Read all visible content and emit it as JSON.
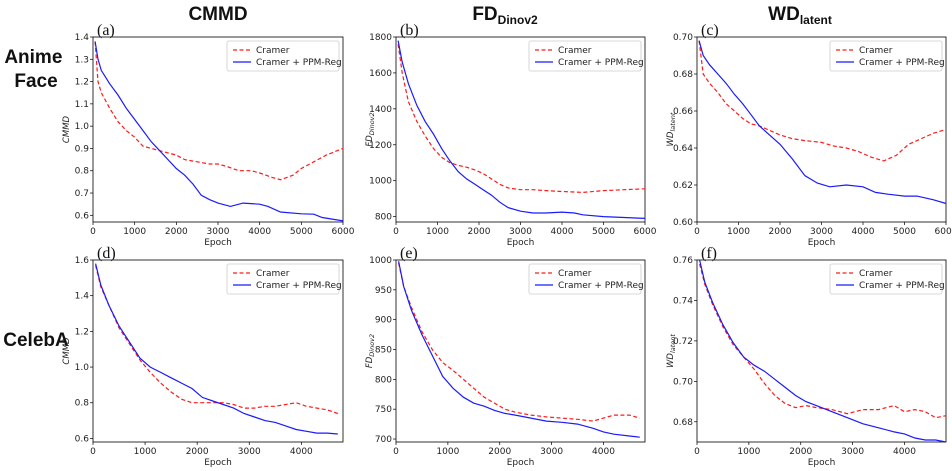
{
  "columns": [
    {
      "title": "CMMD",
      "title_sub": ""
    },
    {
      "title": "FD",
      "title_sub": "Dinov2"
    },
    {
      "title": "WD",
      "title_sub": "latent"
    }
  ],
  "rows": [
    {
      "label_lines": [
        "Anime",
        "Face"
      ]
    },
    {
      "label_lines": [
        "CelebA"
      ]
    }
  ],
  "colors": {
    "cramer": "#ff1a1a",
    "ppm": "#1a1aff"
  },
  "legend": [
    "Cramer",
    "Cramer + PPM-Reg"
  ],
  "chart_data": [
    {
      "type": "line",
      "panel": "(a)",
      "xlabel": "Epoch",
      "ylabel": "CMMD",
      "ylabel_sub": "",
      "xlim": [
        0,
        6000
      ],
      "ylim": [
        0.57,
        1.4
      ],
      "xticks": [
        0,
        1000,
        2000,
        3000,
        4000,
        5000,
        6000
      ],
      "xtick_labels": [
        "0",
        "1000",
        "2000",
        "3000",
        "4000",
        "5000",
        "6000"
      ],
      "yticks": [
        0.6,
        0.7,
        0.8,
        0.9,
        1.0,
        1.1,
        1.2,
        1.3,
        1.4
      ],
      "ytick_labels": [
        "0.6",
        "0.7",
        "0.8",
        "0.9",
        "1.0",
        "1.1",
        "1.2",
        "1.3",
        "1.4"
      ],
      "legend_position": "top-right",
      "series": [
        {
          "name": "Cramer",
          "style": "dashed",
          "x": [
            50,
            120,
            200,
            400,
            600,
            800,
            1000,
            1200,
            1400,
            1600,
            1800,
            2000,
            2200,
            2500,
            2800,
            3000,
            3200,
            3500,
            3800,
            4000,
            4300,
            4500,
            4800,
            5000,
            5300,
            5600,
            6000
          ],
          "y": [
            1.38,
            1.2,
            1.15,
            1.08,
            1.02,
            0.98,
            0.95,
            0.91,
            0.9,
            0.89,
            0.88,
            0.87,
            0.85,
            0.84,
            0.83,
            0.83,
            0.82,
            0.8,
            0.8,
            0.79,
            0.77,
            0.76,
            0.78,
            0.81,
            0.84,
            0.87,
            0.9
          ]
        },
        {
          "name": "Cramer + PPM-Reg",
          "style": "solid",
          "x": [
            50,
            120,
            200,
            300,
            400,
            600,
            800,
            1000,
            1200,
            1400,
            1600,
            1800,
            2000,
            2200,
            2400,
            2600,
            2800,
            3000,
            3300,
            3600,
            4000,
            4200,
            4500,
            5000,
            5300,
            5500,
            6000
          ],
          "y": [
            1.38,
            1.3,
            1.25,
            1.22,
            1.19,
            1.14,
            1.08,
            1.03,
            0.98,
            0.93,
            0.89,
            0.85,
            0.81,
            0.78,
            0.74,
            0.69,
            0.67,
            0.655,
            0.64,
            0.655,
            0.65,
            0.64,
            0.615,
            0.607,
            0.605,
            0.59,
            0.575
          ]
        }
      ]
    },
    {
      "type": "line",
      "panel": "(b)",
      "xlabel": "Epoch",
      "ylabel": "FD",
      "ylabel_sub": "Dinov2",
      "xlim": [
        0,
        6000
      ],
      "ylim": [
        770,
        1800
      ],
      "xticks": [
        0,
        1000,
        2000,
        3000,
        4000,
        5000,
        6000
      ],
      "xtick_labels": [
        "0",
        "1000",
        "2000",
        "3000",
        "4000",
        "5000",
        "6000"
      ],
      "yticks": [
        800,
        1000,
        1200,
        1400,
        1600,
        1800
      ],
      "ytick_labels": [
        "800",
        "1000",
        "1200",
        "1400",
        "1600",
        "1800"
      ],
      "legend_position": "top-right",
      "series": [
        {
          "name": "Cramer",
          "style": "dashed",
          "x": [
            50,
            150,
            300,
            500,
            700,
            900,
            1100,
            1300,
            1500,
            1700,
            1900,
            2100,
            2300,
            2500,
            2700,
            3000,
            3300,
            3600,
            4000,
            4500,
            5000,
            5500,
            6000
          ],
          "y": [
            1760,
            1600,
            1440,
            1330,
            1250,
            1180,
            1130,
            1100,
            1085,
            1075,
            1060,
            1040,
            1010,
            980,
            960,
            950,
            950,
            945,
            940,
            935,
            945,
            950,
            955
          ]
        },
        {
          "name": "Cramer + PPM-Reg",
          "style": "solid",
          "x": [
            50,
            150,
            300,
            500,
            700,
            900,
            1100,
            1300,
            1500,
            1700,
            1900,
            2100,
            2300,
            2500,
            2700,
            3000,
            3300,
            3600,
            4000,
            4300,
            4500,
            5000,
            5500,
            6000
          ],
          "y": [
            1780,
            1660,
            1540,
            1420,
            1330,
            1260,
            1180,
            1110,
            1050,
            1010,
            980,
            950,
            920,
            880,
            850,
            830,
            820,
            820,
            825,
            820,
            810,
            800,
            795,
            790
          ]
        }
      ]
    },
    {
      "type": "line",
      "panel": "(c)",
      "xlabel": "Epoch",
      "ylabel": "WD",
      "ylabel_sub": "latent",
      "xlim": [
        0,
        6000
      ],
      "ylim": [
        0.6,
        0.7
      ],
      "xticks": [
        0,
        1000,
        2000,
        3000,
        4000,
        5000,
        6000
      ],
      "xtick_labels": [
        "0",
        "1000",
        "2000",
        "3000",
        "4000",
        "5000",
        "6000"
      ],
      "yticks": [
        0.6,
        0.62,
        0.64,
        0.66,
        0.68,
        0.7
      ],
      "ytick_labels": [
        "0.60",
        "0.62",
        "0.64",
        "0.66",
        "0.68",
        "0.70"
      ],
      "legend_position": "top-right",
      "series": [
        {
          "name": "Cramer",
          "style": "dashed",
          "x": [
            50,
            150,
            300,
            500,
            700,
            900,
            1100,
            1300,
            1500,
            1700,
            2000,
            2300,
            2600,
            3000,
            3300,
            3600,
            3900,
            4200,
            4500,
            4800,
            5100,
            5400,
            5700,
            6000
          ],
          "y": [
            0.698,
            0.68,
            0.675,
            0.67,
            0.664,
            0.66,
            0.656,
            0.653,
            0.652,
            0.65,
            0.647,
            0.645,
            0.644,
            0.643,
            0.641,
            0.64,
            0.638,
            0.635,
            0.633,
            0.636,
            0.642,
            0.645,
            0.648,
            0.65
          ]
        },
        {
          "name": "Cramer + PPM-Reg",
          "style": "solid",
          "x": [
            50,
            150,
            300,
            500,
            700,
            900,
            1100,
            1300,
            1500,
            1700,
            2000,
            2300,
            2600,
            2900,
            3200,
            3600,
            4000,
            4300,
            4600,
            5000,
            5300,
            5700,
            6000
          ],
          "y": [
            0.698,
            0.69,
            0.685,
            0.68,
            0.675,
            0.669,
            0.664,
            0.658,
            0.652,
            0.648,
            0.642,
            0.634,
            0.625,
            0.621,
            0.619,
            0.62,
            0.619,
            0.616,
            0.615,
            0.614,
            0.614,
            0.612,
            0.61
          ]
        }
      ]
    },
    {
      "type": "line",
      "panel": "(d)",
      "xlabel": "Epoch",
      "ylabel": "CMMD",
      "ylabel_sub": "",
      "xlim": [
        0,
        4800
      ],
      "ylim": [
        0.58,
        1.6
      ],
      "xticks": [
        0,
        1000,
        2000,
        3000,
        4000
      ],
      "xtick_labels": [
        "0",
        "1000",
        "2000",
        "3000",
        "4000"
      ],
      "yticks": [
        0.6,
        0.8,
        1.0,
        1.2,
        1.4,
        1.6
      ],
      "ytick_labels": [
        "0.6",
        "0.8",
        "1.0",
        "1.2",
        "1.4",
        "1.6"
      ],
      "legend_position": "top-right",
      "series": [
        {
          "name": "Cramer",
          "style": "dashed",
          "x": [
            50,
            150,
            300,
            500,
            700,
            900,
            1100,
            1300,
            1500,
            1700,
            1900,
            2100,
            2300,
            2500,
            2700,
            2900,
            3100,
            3300,
            3500,
            3700,
            3900,
            4100,
            4300,
            4500,
            4700
          ],
          "y": [
            1.57,
            1.45,
            1.35,
            1.22,
            1.13,
            1.04,
            0.97,
            0.91,
            0.86,
            0.82,
            0.8,
            0.8,
            0.8,
            0.8,
            0.79,
            0.77,
            0.77,
            0.78,
            0.78,
            0.79,
            0.8,
            0.78,
            0.77,
            0.76,
            0.74
          ]
        },
        {
          "name": "Cramer + PPM-Reg",
          "style": "solid",
          "x": [
            50,
            150,
            300,
            500,
            700,
            900,
            1100,
            1300,
            1500,
            1700,
            1900,
            2100,
            2300,
            2500,
            2700,
            2900,
            3100,
            3300,
            3500,
            3700,
            3900,
            4100,
            4300,
            4500,
            4700
          ],
          "y": [
            1.58,
            1.46,
            1.35,
            1.23,
            1.14,
            1.05,
            1.0,
            0.97,
            0.94,
            0.91,
            0.88,
            0.83,
            0.81,
            0.79,
            0.77,
            0.74,
            0.72,
            0.7,
            0.69,
            0.67,
            0.65,
            0.64,
            0.63,
            0.63,
            0.625
          ]
        }
      ]
    },
    {
      "type": "line",
      "panel": "(e)",
      "xlabel": "Epoch",
      "ylabel": "FD",
      "ylabel_sub": "Dinov2",
      "xlim": [
        0,
        4800
      ],
      "ylim": [
        695,
        1000
      ],
      "xticks": [
        0,
        1000,
        2000,
        3000,
        4000
      ],
      "xtick_labels": [
        "0",
        "1000",
        "2000",
        "3000",
        "4000"
      ],
      "yticks": [
        700,
        750,
        800,
        850,
        900,
        950,
        1000
      ],
      "ytick_labels": [
        "700",
        "750",
        "800",
        "850",
        "900",
        "950",
        "1000"
      ],
      "legend_position": "top-right",
      "series": [
        {
          "name": "Cramer",
          "style": "dashed",
          "x": [
            50,
            150,
            300,
            500,
            700,
            900,
            1100,
            1300,
            1500,
            1700,
            1900,
            2100,
            2300,
            2600,
            2900,
            3200,
            3500,
            3800,
            4000,
            4200,
            4500,
            4700
          ],
          "y": [
            995,
            955,
            920,
            880,
            850,
            828,
            815,
            800,
            785,
            770,
            760,
            750,
            745,
            740,
            737,
            735,
            733,
            730,
            735,
            740,
            740,
            735
          ]
        },
        {
          "name": "Cramer + PPM-Reg",
          "style": "solid",
          "x": [
            50,
            150,
            300,
            500,
            700,
            900,
            1100,
            1300,
            1500,
            1700,
            1900,
            2100,
            2300,
            2600,
            2900,
            3200,
            3500,
            3800,
            4000,
            4200,
            4500,
            4700
          ],
          "y": [
            998,
            955,
            915,
            875,
            840,
            805,
            785,
            770,
            760,
            755,
            748,
            743,
            740,
            735,
            730,
            728,
            725,
            718,
            712,
            708,
            705,
            703
          ]
        }
      ]
    },
    {
      "type": "line",
      "panel": "(f)",
      "xlabel": "Epoch",
      "ylabel": "WD",
      "ylabel_sub": "latent",
      "xlim": [
        0,
        4800
      ],
      "ylim": [
        0.67,
        0.76
      ],
      "xticks": [
        0,
        1000,
        2000,
        3000,
        4000
      ],
      "xtick_labels": [
        "0",
        "1000",
        "2000",
        "3000",
        "4000"
      ],
      "yticks": [
        0.68,
        0.7,
        0.72,
        0.74,
        0.76
      ],
      "ytick_labels": [
        "0.68",
        "0.70",
        "0.72",
        "0.74",
        "0.76"
      ],
      "legend_position": "top-right",
      "series": [
        {
          "name": "Cramer",
          "style": "dashed",
          "x": [
            50,
            150,
            300,
            500,
            700,
            900,
            1100,
            1300,
            1500,
            1700,
            1900,
            2100,
            2300,
            2600,
            2900,
            3200,
            3500,
            3800,
            4000,
            4200,
            4400,
            4600,
            4800
          ],
          "y": [
            0.758,
            0.748,
            0.738,
            0.727,
            0.718,
            0.712,
            0.706,
            0.699,
            0.693,
            0.689,
            0.687,
            0.688,
            0.687,
            0.686,
            0.684,
            0.686,
            0.686,
            0.688,
            0.685,
            0.686,
            0.685,
            0.682,
            0.683
          ]
        },
        {
          "name": "Cramer + PPM-Reg",
          "style": "solid",
          "x": [
            50,
            150,
            300,
            500,
            700,
            900,
            1100,
            1300,
            1500,
            1700,
            1900,
            2100,
            2300,
            2600,
            2900,
            3200,
            3500,
            3800,
            4000,
            4200,
            4400,
            4600,
            4800
          ],
          "y": [
            0.76,
            0.749,
            0.739,
            0.728,
            0.719,
            0.712,
            0.708,
            0.705,
            0.701,
            0.697,
            0.693,
            0.69,
            0.688,
            0.685,
            0.682,
            0.679,
            0.677,
            0.675,
            0.674,
            0.672,
            0.671,
            0.671,
            0.67
          ]
        }
      ]
    }
  ]
}
